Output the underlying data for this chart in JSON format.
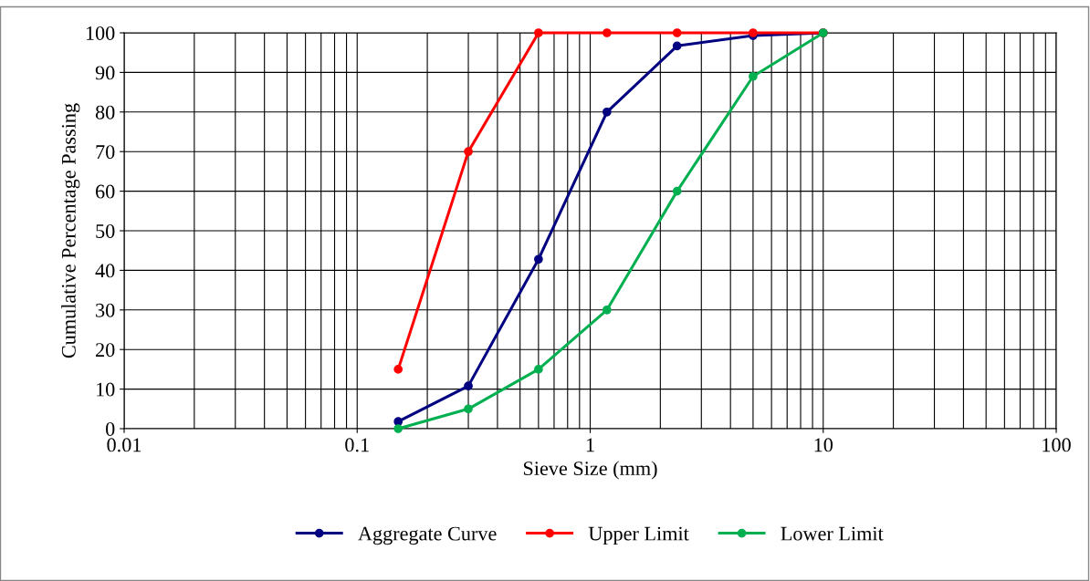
{
  "chart_data": {
    "type": "line",
    "xlabel": "Sieve Size (mm)",
    "ylabel": "Cumulative Percentage Passing",
    "x": [
      0.15,
      0.3,
      0.6,
      1.18,
      2.36,
      5,
      10
    ],
    "series": [
      {
        "name": "Aggregate Curve",
        "color": "#000080",
        "values": [
          1.8,
          10.8,
          42.8,
          80,
          96.7,
          99.3,
          100
        ]
      },
      {
        "name": "Upper Limit",
        "color": "#ff0000",
        "values": [
          15,
          70,
          100,
          100,
          100,
          100,
          100
        ]
      },
      {
        "name": "Lower Limit",
        "color": "#00b050",
        "values": [
          0,
          5,
          15,
          30,
          60,
          89,
          100
        ]
      }
    ],
    "log": "x",
    "xlim": [
      0.01,
      100
    ],
    "ylim": [
      0,
      100
    ],
    "xticks": [
      0.01,
      {
        "value": 0.02,
        "label": null
      },
      {
        "value": 0.03,
        "label": null
      },
      {
        "value": 0.04,
        "label": null
      },
      {
        "value": 0.05,
        "label": null
      },
      {
        "value": 0.06,
        "label": null
      },
      {
        "value": 0.07,
        "label": null
      },
      {
        "value": 0.08,
        "label": null
      },
      {
        "value": 0.09,
        "label": null
      },
      0.1,
      {
        "value": 0.2,
        "label": null
      },
      {
        "value": 0.3,
        "label": null
      },
      {
        "value": 0.4,
        "label": null
      },
      {
        "value": 0.5,
        "label": null
      },
      {
        "value": 0.6,
        "label": null
      },
      {
        "value": 0.7,
        "label": null
      },
      {
        "value": 0.8,
        "label": null
      },
      {
        "value": 0.9,
        "label": null
      },
      1,
      {
        "value": 2,
        "label": null
      },
      {
        "value": 3,
        "label": null
      },
      {
        "value": 4,
        "label": null
      },
      {
        "value": 5,
        "label": null
      },
      {
        "value": 6,
        "label": null
      },
      {
        "value": 7,
        "label": null
      },
      {
        "value": 8,
        "label": null
      },
      {
        "value": 9,
        "label": null
      },
      10,
      {
        "value": 20,
        "label": null
      },
      {
        "value": 30,
        "label": null
      },
      {
        "value": 40,
        "label": null
      },
      {
        "value": 50,
        "label": null
      },
      {
        "value": 60,
        "label": null
      },
      {
        "value": 70,
        "label": null
      },
      {
        "value": 80,
        "label": null
      },
      {
        "value": 90,
        "label": null
      },
      100
    ],
    "yticks": [
      0,
      10,
      20,
      30,
      40,
      50,
      60,
      70,
      80,
      90,
      100
    ],
    "grid": true,
    "legend": "bottom",
    "marker": "circle",
    "line_style": "solid"
  }
}
